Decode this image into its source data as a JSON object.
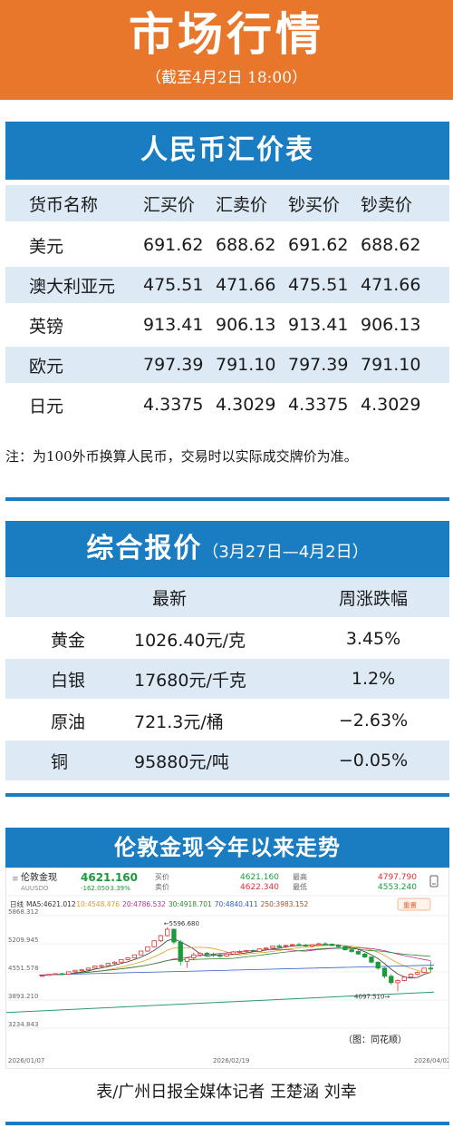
{
  "header": {
    "title": "市场行情",
    "subtitle": "（截至4月2日 18:00）"
  },
  "fx_table": {
    "title": "人民币汇价表",
    "columns": [
      "货币名称",
      "汇买价",
      "汇卖价",
      "钞买价",
      "钞卖价"
    ],
    "rows": [
      [
        "美元",
        "691.62",
        "688.62",
        "691.62",
        "688.62"
      ],
      [
        "澳大利亚元",
        "475.51",
        "471.66",
        "475.51",
        "471.66"
      ],
      [
        "英镑",
        "913.41",
        "906.13",
        "913.41",
        "906.13"
      ],
      [
        "欧元",
        "797.39",
        "791.10",
        "797.39",
        "791.10"
      ],
      [
        "日元",
        "4.3375",
        "4.3029",
        "4.3375",
        "4.3029"
      ]
    ],
    "note": "注：为100外币换算人民币，交易时以实际成交牌价为准。"
  },
  "quotes": {
    "title": "综合报价",
    "period": "（3月27日—4月2日）",
    "columns": [
      "",
      "最新",
      "周涨跌幅"
    ],
    "rows": [
      [
        "黄金",
        "1026.40元/克",
        "3.45%"
      ],
      [
        "白银",
        "17680元/千克",
        "1.2%"
      ],
      [
        "原油",
        "721.3元/桶",
        "−2.63%"
      ],
      [
        "铜",
        "95880元/吨",
        "−0.05%"
      ]
    ]
  },
  "chart": {
    "title": "伦敦金现今年以来走势",
    "instrument_name": "伦敦金现",
    "instrument_code": "AUUSDO",
    "last_price": "4621.160",
    "change": "-162.050",
    "change_pct": "-3.39%",
    "buy_label": "买价",
    "buy_value": "4621.160",
    "sell_label": "卖价",
    "sell_value": "4622.340",
    "high_label": "最高",
    "high_value": "4797.790",
    "low_label": "最低",
    "low_value": "4553.240",
    "period_label": "日线",
    "ma_items": [
      {
        "label": "MA5:4621.012",
        "color": "#333333"
      },
      {
        "label": "10:4548.476",
        "color": "#e0a020"
      },
      {
        "label": "20:4786.532",
        "color": "#c03090"
      },
      {
        "label": "30:4918.701",
        "color": "#2a8c2a"
      },
      {
        "label": "70:4840.411",
        "color": "#3060c0"
      },
      {
        "label": "250:3983.152",
        "color": "#a05020"
      }
    ],
    "reset_label": "重置",
    "y_ticks": [
      "5868.312",
      "5209.945",
      "4551.578",
      "3893.210",
      "3234.843"
    ],
    "x_ticks": [
      "2026/01/07",
      "2026/02/19",
      "2026/04/02"
    ],
    "peak_annotation": "←5596.680",
    "trough_annotation": "4097.510→",
    "source": "（图：同花顺）",
    "colors": {
      "up": "#e03030",
      "down": "#1a9a3a"
    }
  },
  "chart_data": {
    "type": "candlestick",
    "title": "伦敦金现今年以来走势",
    "ylim": [
      3234.843,
      5868.312
    ],
    "x_range": [
      "2026/01/07",
      "2026/04/02"
    ],
    "candles": [
      [
        4460,
        4480,
        4440,
        4470
      ],
      [
        4470,
        4500,
        4455,
        4495
      ],
      [
        4495,
        4520,
        4480,
        4510
      ],
      [
        4510,
        4530,
        4490,
        4500
      ],
      [
        4500,
        4560,
        4495,
        4555
      ],
      [
        4555,
        4600,
        4540,
        4590
      ],
      [
        4590,
        4620,
        4570,
        4600
      ],
      [
        4600,
        4650,
        4590,
        4640
      ],
      [
        4640,
        4700,
        4630,
        4690
      ],
      [
        4690,
        4720,
        4660,
        4700
      ],
      [
        4700,
        4760,
        4690,
        4750
      ],
      [
        4750,
        4800,
        4720,
        4780
      ],
      [
        4780,
        4850,
        4770,
        4840
      ],
      [
        4840,
        4900,
        4820,
        4880
      ],
      [
        4880,
        4960,
        4870,
        4950
      ],
      [
        4950,
        5050,
        4940,
        5040
      ],
      [
        5040,
        5150,
        5020,
        5140
      ],
      [
        5140,
        5300,
        5120,
        5280
      ],
      [
        5280,
        5420,
        5250,
        5400
      ],
      [
        5400,
        5596.68,
        5380,
        5550
      ],
      [
        5550,
        5560,
        5200,
        5250
      ],
      [
        5250,
        5300,
        4700,
        4800
      ],
      [
        4800,
        4900,
        4650,
        4880
      ],
      [
        4880,
        5000,
        4820,
        4950
      ],
      [
        4950,
        5010,
        4900,
        4990
      ],
      [
        4990,
        5020,
        4930,
        4960
      ],
      [
        4960,
        5000,
        4900,
        4940
      ],
      [
        4940,
        4980,
        4880,
        4920
      ],
      [
        4920,
        4990,
        4900,
        4970
      ],
      [
        4970,
        5040,
        4950,
        5020
      ],
      [
        5020,
        5060,
        4990,
        5030
      ],
      [
        5030,
        5070,
        5000,
        5050
      ],
      [
        5050,
        5080,
        5010,
        5030
      ],
      [
        5030,
        5100,
        5020,
        5090
      ],
      [
        5090,
        5130,
        5060,
        5110
      ],
      [
        5110,
        5170,
        5100,
        5160
      ],
      [
        5160,
        5200,
        5120,
        5150
      ],
      [
        5150,
        5190,
        5110,
        5170
      ],
      [
        5170,
        5210,
        5140,
        5190
      ],
      [
        5190,
        5230,
        5150,
        5180
      ],
      [
        5180,
        5210,
        5140,
        5160
      ],
      [
        5160,
        5200,
        5130,
        5190
      ],
      [
        5190,
        5230,
        5170,
        5210
      ],
      [
        5210,
        5250,
        5180,
        5200
      ],
      [
        5200,
        5220,
        5150,
        5170
      ],
      [
        5170,
        5200,
        5120,
        5140
      ],
      [
        5140,
        5160,
        5050,
        5070
      ],
      [
        5070,
        5100,
        5000,
        5030
      ],
      [
        5030,
        5060,
        4950,
        4970
      ],
      [
        4970,
        5000,
        4880,
        4900
      ],
      [
        4900,
        4920,
        4750,
        4780
      ],
      [
        4780,
        4800,
        4600,
        4640
      ],
      [
        4640,
        4660,
        4400,
        4450
      ],
      [
        4450,
        4500,
        4250,
        4300
      ],
      [
        4300,
        4380,
        4097.51,
        4350
      ],
      [
        4350,
        4450,
        4330,
        4430
      ],
      [
        4430,
        4520,
        4410,
        4500
      ],
      [
        4500,
        4560,
        4470,
        4540
      ],
      [
        4540,
        4650,
        4520,
        4640
      ],
      [
        4640,
        4797.79,
        4553.24,
        4621.16
      ]
    ]
  }
}
